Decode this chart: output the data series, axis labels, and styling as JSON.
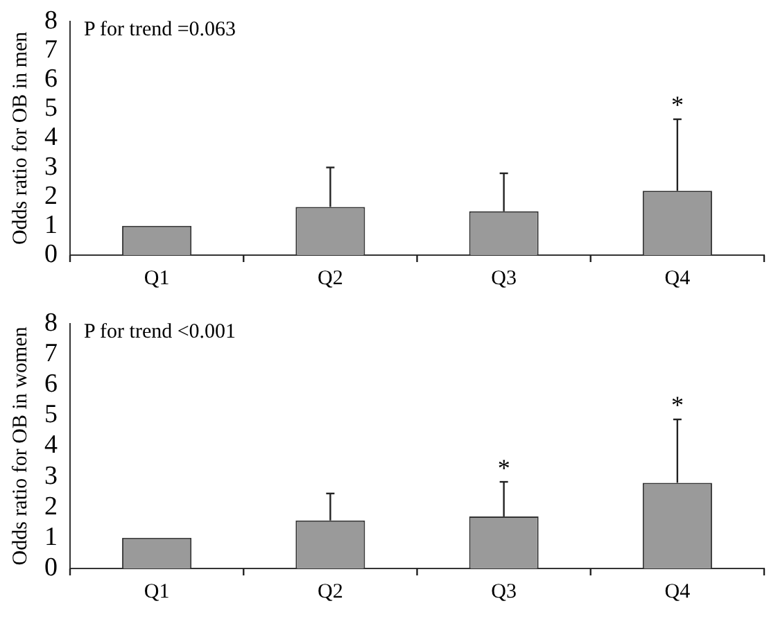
{
  "chart_data": [
    {
      "type": "bar",
      "ylabel": "Odds ratio for OB in men",
      "categories": [
        "Q1",
        "Q2",
        "Q3",
        "Q4"
      ],
      "values": [
        1.0,
        1.65,
        1.5,
        2.2
      ],
      "color": "#9a9a9a",
      "errors": [
        null,
        [
          1.65,
          3.0
        ],
        [
          1.5,
          2.8
        ],
        [
          2.2,
          4.65
        ]
      ],
      "ylim": [
        0,
        8
      ],
      "yticks": [
        0,
        1,
        2,
        3,
        4,
        5,
        6,
        7,
        8
      ],
      "grid": false,
      "legend": false,
      "value_labels": [
        null,
        null,
        null,
        "*"
      ],
      "annotations": [
        "P for trend =0.063"
      ]
    },
    {
      "type": "bar",
      "ylabel": "Odds ratio for OB in women",
      "categories": [
        "Q1",
        "Q2",
        "Q3",
        "Q4"
      ],
      "values": [
        1.0,
        1.57,
        1.7,
        2.8
      ],
      "color": "#9a9a9a",
      "errors": [
        null,
        [
          1.57,
          2.45
        ],
        [
          1.7,
          2.83
        ],
        [
          2.8,
          4.87
        ]
      ],
      "ylim": [
        0,
        8
      ],
      "yticks": [
        0,
        1,
        2,
        3,
        4,
        5,
        6,
        7,
        8
      ],
      "grid": false,
      "legend": false,
      "value_labels": [
        null,
        null,
        "*",
        "*"
      ],
      "annotations": [
        "P for trend <0.001"
      ]
    }
  ]
}
